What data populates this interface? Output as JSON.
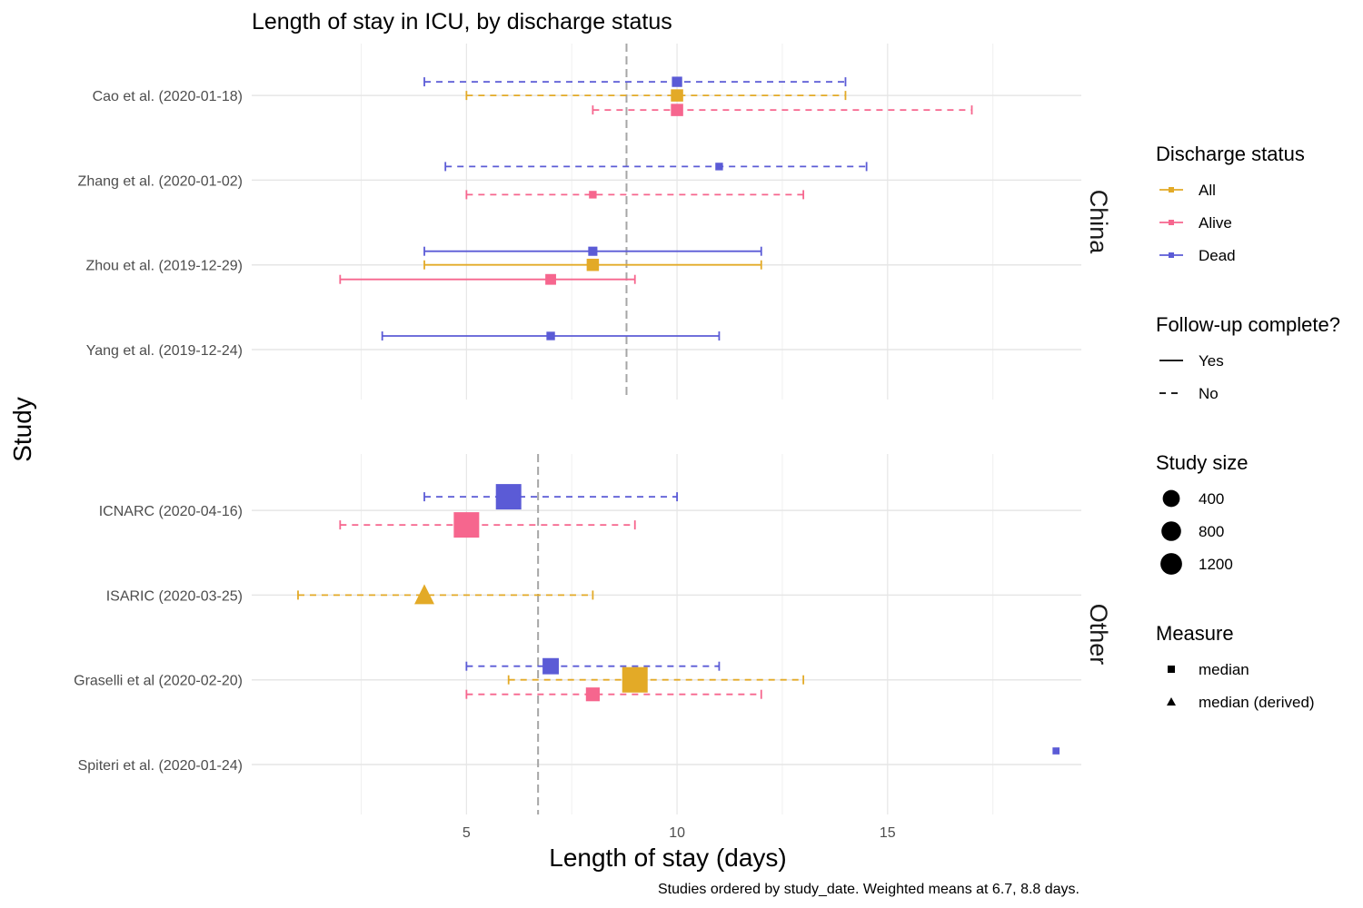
{
  "chart_data": {
    "type": "scatter",
    "title": "Length of stay in ICU, by discharge status",
    "xlabel": "Length of stay (days)",
    "ylabel": "Study",
    "caption": "Studies ordered by study_date. Weighted means at 6.7, 8.8 days.",
    "xlim": [
      -0.1,
      19.6
    ],
    "x_ticks": [
      5,
      10,
      15
    ],
    "grid": true,
    "status_colors": {
      "All": "#E3AA27",
      "Alive": "#F6668E",
      "Dead": "#5B5BD6"
    },
    "panels": [
      {
        "name": "China",
        "weighted_mean": 8.8,
        "studies": [
          {
            "label": "Cao et al. (2020-01-18)",
            "estimates": [
              {
                "status": "Dead",
                "value": 10,
                "low": 4,
                "high": 14,
                "measure": "median",
                "complete": "No",
                "size": 50
              },
              {
                "status": "All",
                "value": 10,
                "low": 5,
                "high": 14,
                "measure": "median",
                "complete": "No",
                "size": 100
              },
              {
                "status": "Alive",
                "value": 10,
                "low": 8,
                "high": 17,
                "measure": "median",
                "complete": "No",
                "size": 100
              }
            ]
          },
          {
            "label": "Zhang et al. (2020-01-02)",
            "estimates": [
              {
                "status": "Dead",
                "value": 11,
                "low": 4.5,
                "high": 14.5,
                "measure": "median",
                "complete": "No",
                "size": 10
              },
              {
                "status": "Alive",
                "value": 8,
                "low": 5,
                "high": 13,
                "measure": "median",
                "complete": "No",
                "size": 10
              }
            ]
          },
          {
            "label": "Zhou et al. (2019-12-29)",
            "estimates": [
              {
                "status": "Dead",
                "value": 8,
                "low": 4,
                "high": 12,
                "measure": "median",
                "complete": "Yes",
                "size": 30
              },
              {
                "status": "All",
                "value": 8,
                "low": 4,
                "high": 12,
                "measure": "median",
                "complete": "Yes",
                "size": 100
              },
              {
                "status": "Alive",
                "value": 7,
                "low": 2,
                "high": 9,
                "measure": "median",
                "complete": "Yes",
                "size": 60
              }
            ]
          },
          {
            "label": "Yang et al. (2019-12-24)",
            "estimates": [
              {
                "status": "Dead",
                "value": 7,
                "low": 3,
                "high": 11,
                "measure": "median",
                "complete": "Yes",
                "size": 20
              }
            ]
          }
        ]
      },
      {
        "name": "Other",
        "weighted_mean": 6.7,
        "studies": [
          {
            "label": "ICNARC (2020-04-16)",
            "estimates": [
              {
                "status": "Dead",
                "value": 6,
                "low": 4,
                "high": 10,
                "measure": "median",
                "complete": "No",
                "size": 900
              },
              {
                "status": "Alive",
                "value": 5,
                "low": 2,
                "high": 9,
                "measure": "median",
                "complete": "No",
                "size": 900
              }
            ]
          },
          {
            "label": "ISARIC (2020-03-25)",
            "estimates": [
              {
                "status": "All",
                "value": 4,
                "low": 1,
                "high": 8,
                "measure": "median (derived)",
                "complete": "No",
                "size": 300
              }
            ]
          },
          {
            "label": "Graselli et al (2020-02-20)",
            "estimates": [
              {
                "status": "Dead",
                "value": 7,
                "low": 5,
                "high": 11,
                "measure": "median",
                "complete": "No",
                "size": 250
              },
              {
                "status": "All",
                "value": 9,
                "low": 6,
                "high": 13,
                "measure": "median",
                "complete": "No",
                "size": 900
              },
              {
                "status": "Alive",
                "value": 8,
                "low": 5,
                "high": 12,
                "measure": "median",
                "complete": "No",
                "size": 150
              }
            ]
          },
          {
            "label": "Spiteri et al. (2020-01-24)",
            "estimates": [
              {
                "status": "Dead",
                "value": 19,
                "low": null,
                "high": null,
                "measure": "median",
                "complete": "No",
                "size": 5
              }
            ]
          }
        ]
      }
    ],
    "legends": {
      "discharge_status": {
        "title": "Discharge status",
        "entries": [
          "All",
          "Alive",
          "Dead"
        ]
      },
      "follow_up": {
        "title": "Follow-up complete?",
        "entries": [
          "Yes",
          "No"
        ]
      },
      "study_size": {
        "title": "Study size",
        "entries": [
          400,
          800,
          1200
        ]
      },
      "measure": {
        "title": "Measure",
        "entries": [
          "median",
          "median (derived)"
        ]
      }
    }
  }
}
